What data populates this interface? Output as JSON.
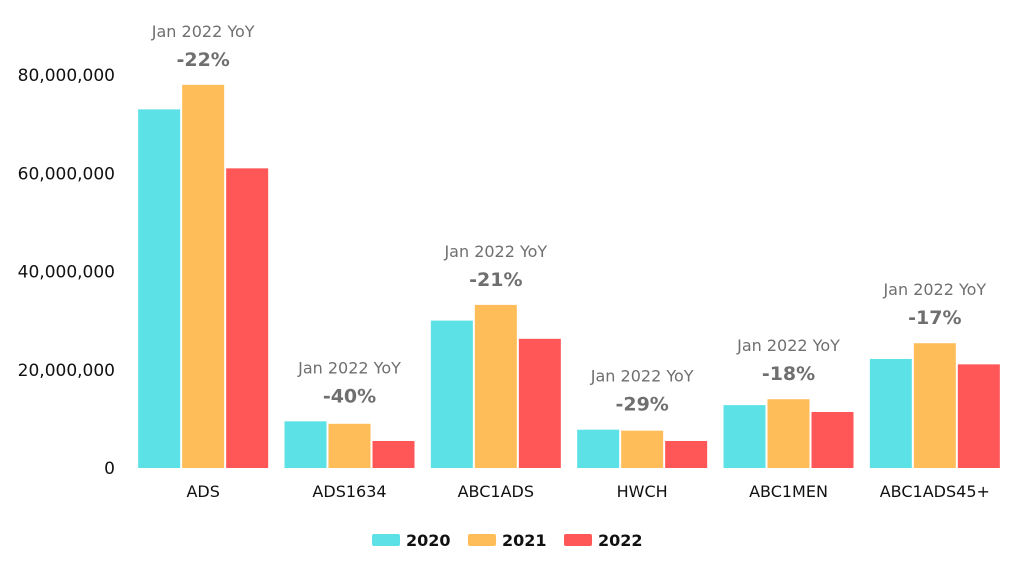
{
  "chart_data": {
    "type": "bar",
    "categories": [
      "ADS",
      "ADS1634",
      "ABC1ADS",
      "HWCH",
      "ABC1MEN",
      "ABC1ADS45+"
    ],
    "series": [
      {
        "name": "2020",
        "color": "#5ce1e6",
        "values": [
          73000000,
          9500000,
          30000000,
          7800000,
          12800000,
          22200000
        ]
      },
      {
        "name": "2021",
        "color": "#ffbd59",
        "values": [
          78000000,
          9000000,
          33200000,
          7600000,
          14000000,
          25400000
        ]
      },
      {
        "name": "2022",
        "color": "#ff5757",
        "values": [
          61000000,
          5500000,
          26300000,
          5500000,
          11400000,
          21100000
        ]
      }
    ],
    "ylim": [
      0,
      80000000
    ],
    "yticks": [
      0,
      20000000,
      40000000,
      60000000,
      80000000
    ],
    "ytick_labels": [
      "0",
      "20,000,000",
      "40,000,000",
      "60,000,000",
      "80,000,000"
    ],
    "annotations": [
      {
        "category": "ADS",
        "label": "Jan 2022 YoY",
        "value": "-22%"
      },
      {
        "category": "ADS1634",
        "label": "Jan 2022 YoY",
        "value": "-40%"
      },
      {
        "category": "ABC1ADS",
        "label": "Jan 2022 YoY",
        "value": "-21%"
      },
      {
        "category": "HWCH",
        "label": "Jan 2022 YoY",
        "value": "-29%"
      },
      {
        "category": "ABC1MEN",
        "label": "Jan 2022 YoY",
        "value": "-18%"
      },
      {
        "category": "ABC1ADS45+",
        "label": "Jan 2022 YoY",
        "value": "-17%"
      }
    ],
    "legend_position": "bottom-center",
    "grid": false,
    "title": "",
    "xlabel": "",
    "ylabel": ""
  }
}
